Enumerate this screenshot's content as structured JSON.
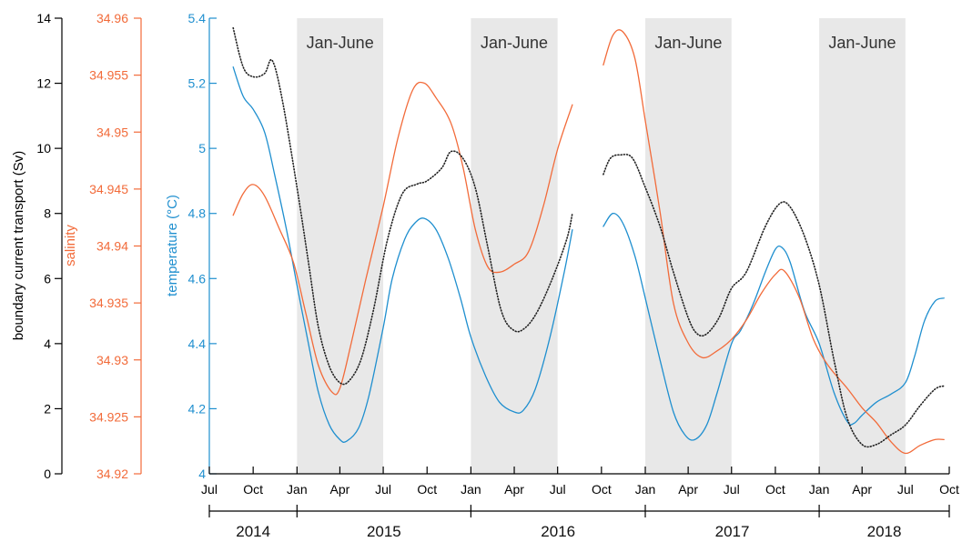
{
  "chart_data": {
    "type": "line",
    "shaded_label": "Jan-June",
    "shaded_periods": [
      [
        "2015-01",
        "2015-07"
      ],
      [
        "2016-01",
        "2016-07"
      ],
      [
        "2017-01",
        "2017-07"
      ],
      [
        "2018-01",
        "2018-07"
      ]
    ],
    "x_ticks": [
      {
        "date": "2014-07",
        "label": "Jul"
      },
      {
        "date": "2014-10",
        "label": "Oct"
      },
      {
        "date": "2015-01",
        "label": "Jan"
      },
      {
        "date": "2015-04",
        "label": "Apr"
      },
      {
        "date": "2015-07",
        "label": "Jul"
      },
      {
        "date": "2015-10",
        "label": "Oct"
      },
      {
        "date": "2016-01",
        "label": "Jan"
      },
      {
        "date": "2016-04",
        "label": "Apr"
      },
      {
        "date": "2016-07",
        "label": "Jul"
      },
      {
        "date": "2016-10",
        "label": "Oct"
      },
      {
        "date": "2017-01",
        "label": "Jan"
      },
      {
        "date": "2017-04",
        "label": "Apr"
      },
      {
        "date": "2017-07",
        "label": "Jul"
      },
      {
        "date": "2017-10",
        "label": "Oct"
      },
      {
        "date": "2018-01",
        "label": "Jan"
      },
      {
        "date": "2018-04",
        "label": "Apr"
      },
      {
        "date": "2018-07",
        "label": "Jul"
      },
      {
        "date": "2018-10",
        "label": "Oct"
      }
    ],
    "x_range": [
      "2014-07",
      "2018-10"
    ],
    "years": [
      {
        "label": "2014",
        "from": "2014-07",
        "to": "2015-01"
      },
      {
        "label": "2015",
        "from": "2015-01",
        "to": "2016-01"
      },
      {
        "label": "2016",
        "from": "2016-01",
        "to": "2017-01"
      },
      {
        "label": "2017",
        "from": "2017-01",
        "to": "2018-01"
      },
      {
        "label": "2018",
        "from": "2018-01",
        "to": "2018-10"
      }
    ],
    "axes": {
      "transport": {
        "label": "boundary current transport (Sv)",
        "color": "#000000",
        "ylim": [
          0,
          14
        ],
        "ticks": [
          "0",
          "2",
          "4",
          "6",
          "8",
          "10",
          "12",
          "14"
        ]
      },
      "salinity": {
        "label": "salinity",
        "color": "#f26b3a",
        "ylim": [
          34.92,
          34.96
        ],
        "ticks": [
          "34.92",
          "34.925",
          "34.93",
          "34.935",
          "34.94",
          "34.945",
          "34.95",
          "34.955",
          "34.96"
        ]
      },
      "temperature": {
        "label": "temperature (°C)",
        "color": "#1f8fcf",
        "ylim": [
          4,
          5.4
        ],
        "ticks": [
          "4",
          "4.2",
          "4.4",
          "4.6",
          "4.8",
          "5",
          "5.2",
          "5.4"
        ]
      }
    },
    "series": [
      {
        "axis": "temperature",
        "color": "#1f8fcf",
        "style": "solid",
        "segments": [
          [
            [
              "2014-08-20",
              5.25
            ],
            [
              "2014-09-10",
              5.16
            ],
            [
              "2014-10-01",
              5.12
            ],
            [
              "2014-10-25",
              5.05
            ],
            [
              "2014-11-15",
              4.92
            ],
            [
              "2014-12-10",
              4.75
            ],
            [
              "2015-01-01",
              4.58
            ],
            [
              "2015-01-25",
              4.4
            ],
            [
              "2015-02-15",
              4.25
            ],
            [
              "2015-03-10",
              4.15
            ],
            [
              "2015-04-01",
              4.105
            ],
            [
              "2015-04-15",
              4.1
            ],
            [
              "2015-05-10",
              4.14
            ],
            [
              "2015-06-01",
              4.24
            ],
            [
              "2015-07-01",
              4.45
            ],
            [
              "2015-07-20",
              4.6
            ],
            [
              "2015-08-15",
              4.72
            ],
            [
              "2015-09-05",
              4.77
            ],
            [
              "2015-09-25",
              4.785
            ],
            [
              "2015-10-20",
              4.75
            ],
            [
              "2015-11-15",
              4.66
            ],
            [
              "2015-12-10",
              4.54
            ],
            [
              "2016-01-01",
              4.42
            ],
            [
              "2016-02-01",
              4.3
            ],
            [
              "2016-03-01",
              4.22
            ],
            [
              "2016-04-01",
              4.19
            ],
            [
              "2016-04-20",
              4.195
            ],
            [
              "2016-05-15",
              4.26
            ],
            [
              "2016-06-15",
              4.42
            ],
            [
              "2016-07-15",
              4.62
            ],
            [
              "2016-08-01",
              4.75
            ]
          ],
          [
            [
              "2016-10-05",
              4.76
            ],
            [
              "2016-10-25",
              4.8
            ],
            [
              "2016-11-15",
              4.77
            ],
            [
              "2016-12-10",
              4.67
            ],
            [
              "2017-01-01",
              4.54
            ],
            [
              "2017-02-01",
              4.35
            ],
            [
              "2017-03-01",
              4.19
            ],
            [
              "2017-03-25",
              4.12
            ],
            [
              "2017-04-15",
              4.105
            ],
            [
              "2017-05-10",
              4.15
            ],
            [
              "2017-06-01",
              4.25
            ],
            [
              "2017-07-01",
              4.4
            ],
            [
              "2017-07-20",
              4.44
            ],
            [
              "2017-08-15",
              4.52
            ],
            [
              "2017-09-10",
              4.62
            ],
            [
              "2017-10-01",
              4.69
            ],
            [
              "2017-10-15",
              4.695
            ],
            [
              "2017-11-01",
              4.65
            ],
            [
              "2017-12-01",
              4.5
            ],
            [
              "2018-01-01",
              4.4
            ],
            [
              "2018-02-01",
              4.25
            ],
            [
              "2018-03-01",
              4.16
            ],
            [
              "2018-03-15",
              4.155
            ],
            [
              "2018-04-01",
              4.18
            ],
            [
              "2018-05-01",
              4.22
            ],
            [
              "2018-06-01",
              4.245
            ],
            [
              "2018-07-01",
              4.28
            ],
            [
              "2018-07-20",
              4.36
            ],
            [
              "2018-08-10",
              4.47
            ],
            [
              "2018-09-01",
              4.53
            ],
            [
              "2018-09-20",
              4.54
            ]
          ]
        ]
      },
      {
        "axis": "salinity",
        "color": "#f26b3a",
        "style": "solid",
        "segments": [
          [
            [
              "2014-08-20",
              34.9427
            ],
            [
              "2014-09-10",
              34.9446
            ],
            [
              "2014-10-01",
              34.9454
            ],
            [
              "2014-10-25",
              34.9444
            ],
            [
              "2014-11-25",
              34.9415
            ],
            [
              "2014-12-25",
              34.9385
            ],
            [
              "2015-01-20",
              34.934
            ],
            [
              "2015-02-15",
              34.9295
            ],
            [
              "2015-03-15",
              34.9272
            ],
            [
              "2015-04-01",
              34.9275
            ],
            [
              "2015-04-25",
              34.9315
            ],
            [
              "2015-05-25",
              34.937
            ],
            [
              "2015-07-01",
              34.9435
            ],
            [
              "2015-08-01",
              34.9495
            ],
            [
              "2015-09-01",
              34.9537
            ],
            [
              "2015-09-25",
              34.9543
            ],
            [
              "2015-10-20",
              34.953
            ],
            [
              "2015-11-20",
              34.9508
            ],
            [
              "2015-12-15",
              34.947
            ],
            [
              "2016-01-10",
              34.9415
            ],
            [
              "2016-02-05",
              34.9382
            ],
            [
              "2016-03-01",
              34.9377
            ],
            [
              "2016-04-01",
              34.9384
            ],
            [
              "2016-05-01",
              34.9395
            ],
            [
              "2016-06-01",
              34.9435
            ],
            [
              "2016-07-01",
              34.9485
            ],
            [
              "2016-08-01",
              34.9524
            ]
          ],
          [
            [
              "2016-10-05",
              34.9559
            ],
            [
              "2016-10-25",
              34.9585
            ],
            [
              "2016-11-15",
              34.9588
            ],
            [
              "2016-12-10",
              34.9565
            ],
            [
              "2017-01-01",
              34.951
            ],
            [
              "2017-02-01",
              34.943
            ],
            [
              "2017-03-01",
              34.935
            ],
            [
              "2017-04-01",
              34.9315
            ],
            [
              "2017-05-01",
              34.9302
            ],
            [
              "2017-06-01",
              34.9308
            ],
            [
              "2017-07-01",
              34.9318
            ],
            [
              "2017-08-01",
              34.9335
            ],
            [
              "2017-09-01",
              34.9358
            ],
            [
              "2017-10-01",
              34.9375
            ],
            [
              "2017-10-20",
              34.9378
            ],
            [
              "2017-11-20",
              34.9355
            ],
            [
              "2017-12-20",
              34.9318
            ],
            [
              "2018-01-20",
              34.9295
            ],
            [
              "2018-03-01",
              34.9275
            ],
            [
              "2018-04-01",
              34.9258
            ],
            [
              "2018-05-01",
              34.9245
            ],
            [
              "2018-06-01",
              34.9228
            ],
            [
              "2018-07-01",
              34.9218
            ],
            [
              "2018-08-01",
              34.9225
            ],
            [
              "2018-09-01",
              34.923
            ],
            [
              "2018-09-20",
              34.923
            ]
          ]
        ]
      },
      {
        "axis": "transport",
        "color": "#222222",
        "style": "dotted",
        "segments": [
          [
            [
              "2014-08-20",
              13.7
            ],
            [
              "2014-09-10",
              12.5
            ],
            [
              "2014-10-01",
              12.2
            ],
            [
              "2014-10-25",
              12.3
            ],
            [
              "2014-11-10",
              12.7
            ],
            [
              "2014-12-01",
              11.5
            ],
            [
              "2015-01-01",
              8.8
            ],
            [
              "2015-01-25",
              6.5
            ],
            [
              "2015-02-15",
              4.5
            ],
            [
              "2015-03-10",
              3.3
            ],
            [
              "2015-04-01",
              2.8
            ],
            [
              "2015-04-20",
              2.85
            ],
            [
              "2015-05-15",
              3.5
            ],
            [
              "2015-06-10",
              5.0
            ],
            [
              "2015-07-10",
              7.2
            ],
            [
              "2015-08-10",
              8.6
            ],
            [
              "2015-09-10",
              8.9
            ],
            [
              "2015-10-01",
              9.0
            ],
            [
              "2015-11-01",
              9.4
            ],
            [
              "2015-11-20",
              9.9
            ],
            [
              "2015-12-15",
              9.7
            ],
            [
              "2016-01-10",
              8.8
            ],
            [
              "2016-02-05",
              7.0
            ],
            [
              "2016-03-05",
              5.0
            ],
            [
              "2016-04-01",
              4.4
            ],
            [
              "2016-04-25",
              4.5
            ],
            [
              "2016-05-20",
              5.0
            ],
            [
              "2016-06-20",
              6.0
            ],
            [
              "2016-07-20",
              7.2
            ],
            [
              "2016-08-01",
              8.0
            ]
          ],
          [
            [
              "2016-10-05",
              9.2
            ],
            [
              "2016-10-20",
              9.7
            ],
            [
              "2016-11-10",
              9.8
            ],
            [
              "2016-12-05",
              9.7
            ],
            [
              "2017-01-01",
              8.8
            ],
            [
              "2017-02-01",
              7.6
            ],
            [
              "2017-03-01",
              6.2
            ],
            [
              "2017-04-01",
              4.8
            ],
            [
              "2017-04-20",
              4.3
            ],
            [
              "2017-05-10",
              4.3
            ],
            [
              "2017-06-05",
              4.8
            ],
            [
              "2017-07-01",
              5.7
            ],
            [
              "2017-08-01",
              6.2
            ],
            [
              "2017-09-10",
              7.6
            ],
            [
              "2017-10-10",
              8.3
            ],
            [
              "2017-11-01",
              8.2
            ],
            [
              "2017-12-01",
              7.3
            ],
            [
              "2018-01-01",
              5.8
            ],
            [
              "2018-02-01",
              3.5
            ],
            [
              "2018-03-01",
              1.7
            ],
            [
              "2018-04-01",
              0.9
            ],
            [
              "2018-05-01",
              0.9
            ],
            [
              "2018-06-01",
              1.2
            ],
            [
              "2018-07-01",
              1.5
            ],
            [
              "2018-08-01",
              2.1
            ],
            [
              "2018-09-01",
              2.6
            ],
            [
              "2018-09-20",
              2.7
            ]
          ]
        ]
      }
    ]
  }
}
